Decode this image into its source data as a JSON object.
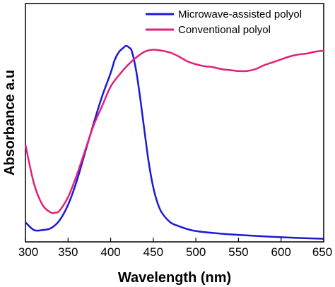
{
  "chart_data": {
    "type": "line",
    "xlabel": "Wavelength (nm)",
    "ylabel": "Absorbance a.u",
    "xlim": [
      300,
      650
    ],
    "ylim": [
      0,
      1
    ],
    "x_ticks": [
      300,
      350,
      400,
      450,
      500,
      550,
      600,
      650
    ],
    "y_ticks_labeled": false,
    "grid": false,
    "legend_position": "top-right",
    "series": [
      {
        "name": "Microwave-assisted polyol",
        "color": "#1a1ad6",
        "x": [
          300,
          310,
          320,
          330,
          340,
          350,
          360,
          370,
          380,
          390,
          400,
          405,
          410,
          415,
          418,
          422,
          425,
          430,
          435,
          440,
          445,
          450,
          455,
          460,
          470,
          480,
          490,
          500,
          520,
          550,
          600,
          650
        ],
        "y": [
          0.09,
          0.05,
          0.05,
          0.06,
          0.1,
          0.18,
          0.3,
          0.45,
          0.6,
          0.74,
          0.86,
          0.93,
          0.97,
          0.99,
          1.0,
          0.99,
          0.97,
          0.87,
          0.72,
          0.55,
          0.39,
          0.27,
          0.19,
          0.14,
          0.09,
          0.07,
          0.055,
          0.045,
          0.035,
          0.025,
          0.013,
          0.005
        ]
      },
      {
        "name": "Conventional polyol",
        "color": "#e0207a",
        "x": [
          300,
          310,
          320,
          330,
          335,
          340,
          350,
          360,
          370,
          380,
          390,
          400,
          410,
          420,
          430,
          440,
          450,
          460,
          470,
          480,
          490,
          500,
          510,
          520,
          530,
          540,
          550,
          560,
          570,
          580,
          590,
          600,
          610,
          620,
          630,
          640,
          650
        ],
        "y": [
          0.49,
          0.29,
          0.18,
          0.14,
          0.14,
          0.15,
          0.22,
          0.33,
          0.46,
          0.59,
          0.69,
          0.79,
          0.85,
          0.9,
          0.94,
          0.97,
          0.98,
          0.975,
          0.965,
          0.945,
          0.92,
          0.905,
          0.895,
          0.89,
          0.88,
          0.875,
          0.87,
          0.87,
          0.88,
          0.9,
          0.915,
          0.93,
          0.945,
          0.955,
          0.96,
          0.97,
          0.975
        ]
      }
    ]
  }
}
